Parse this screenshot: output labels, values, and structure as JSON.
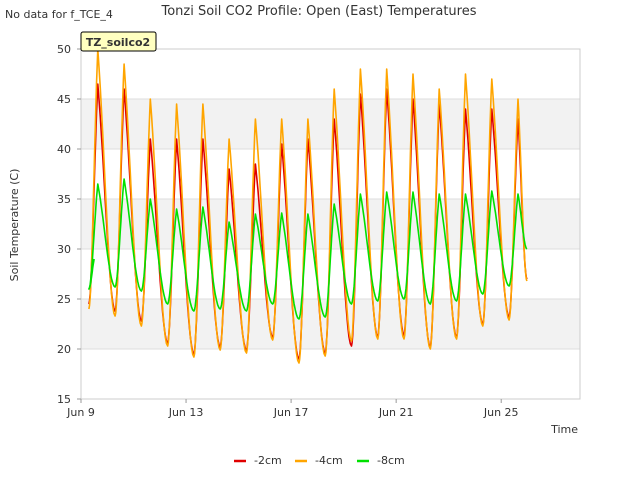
{
  "chart_data": {
    "type": "line",
    "title": "Tonzi Soil CO2 Profile: Open (East) Temperatures",
    "note": "No data for f_TCE_4",
    "station_label": "TZ_soilco2",
    "xlabel": "Time",
    "ylabel": "Soil Temperature (C)",
    "xlim": [
      "2024-06-09",
      "2024-06-28"
    ],
    "ylim": [
      15,
      50
    ],
    "x_ticks": [
      "Jun 9",
      "Jun 13",
      "Jun 17",
      "Jun 21",
      "Jun 25"
    ],
    "y_ticks": [
      15,
      20,
      25,
      30,
      35,
      40,
      45,
      50
    ],
    "grid": "horizontal bands",
    "legend_position": "bottom-center",
    "series_start": "2024-06-09T12:00",
    "series": [
      {
        "name": "-2cm",
        "color": "#e00000",
        "daily_min": [
          24.5,
          23.8,
          22.8,
          20.6,
          19.5,
          20.2,
          19.9,
          21.2,
          19.0,
          19.6,
          20.3,
          21.2,
          21.4,
          20.2,
          21.2,
          22.5,
          23.2
        ],
        "daily_max": [
          46.5,
          46.0,
          41.0,
          41.0,
          41.0,
          38.0,
          38.5,
          40.5,
          41.0,
          43.0,
          45.5,
          46.0,
          45.0,
          44.5,
          44.0,
          44.0,
          43.0
        ],
        "end_value": 27.0
      },
      {
        "name": "-4cm",
        "color": "#ffa500",
        "daily_min": [
          24.0,
          23.3,
          22.3,
          20.3,
          19.2,
          19.9,
          19.6,
          20.9,
          18.6,
          19.3,
          20.8,
          21.0,
          21.0,
          20.0,
          21.0,
          22.3,
          22.9
        ],
        "daily_max": [
          50.0,
          48.5,
          45.0,
          44.5,
          44.5,
          41.0,
          43.0,
          43.0,
          43.0,
          46.0,
          48.0,
          48.0,
          47.5,
          46.0,
          47.5,
          47.0,
          45.0
        ],
        "end_value": 26.8
      },
      {
        "name": "-8cm",
        "color": "#00e000",
        "daily_min": [
          26.0,
          26.2,
          25.8,
          24.5,
          23.8,
          24.0,
          23.8,
          24.5,
          23.0,
          23.2,
          24.5,
          24.8,
          25.0,
          24.5,
          24.8,
          25.5,
          26.3
        ],
        "daily_max": [
          36.5,
          37.0,
          35.0,
          34.0,
          34.2,
          32.7,
          33.5,
          33.6,
          33.5,
          34.5,
          35.5,
          35.7,
          35.7,
          35.5,
          35.5,
          35.8,
          35.5
        ],
        "start_value": 29.0,
        "end_value": 30.0
      }
    ]
  }
}
